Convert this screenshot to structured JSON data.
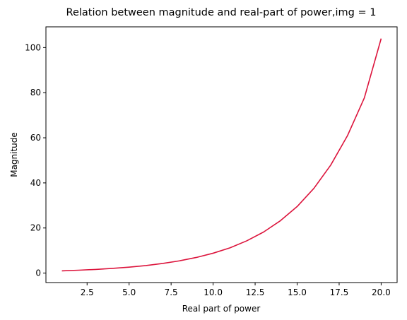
{
  "chart_data": {
    "type": "line",
    "title": "Relation between magnitude and real-part of power,img = 1",
    "xlabel": "Real part of power",
    "ylabel": "Magnitude",
    "xlim": [
      0.05,
      20.95
    ],
    "ylim": [
      -4.2,
      109.2
    ],
    "xticks": [
      2.5,
      5.0,
      7.5,
      10.0,
      12.5,
      15.0,
      17.5,
      20.0
    ],
    "xtick_labels": [
      "2.5",
      "5.0",
      "7.5",
      "10.0",
      "12.5",
      "15.0",
      "17.5",
      "20.0"
    ],
    "yticks": [
      0,
      20,
      40,
      60,
      80,
      100
    ],
    "ytick_labels": [
      "0",
      "20",
      "40",
      "60",
      "80",
      "100"
    ],
    "grid": false,
    "legend": "none",
    "series": [
      {
        "color": "#dc143c",
        "x": [
          1.0,
          2.0,
          3.0,
          4.0,
          5.0,
          6.0,
          7.0,
          8.0,
          9.0,
          10.0,
          11.0,
          12.0,
          13.0,
          14.0,
          15.0,
          16.0,
          17.0,
          18.0,
          19.0,
          20.0
        ],
        "y": [
          1.0,
          1.28,
          1.63,
          2.07,
          2.63,
          3.35,
          4.27,
          5.44,
          6.93,
          8.82,
          11.2,
          14.3,
          18.2,
          23.2,
          29.5,
          37.6,
          47.9,
          61.0,
          77.7,
          104.0
        ]
      }
    ]
  }
}
